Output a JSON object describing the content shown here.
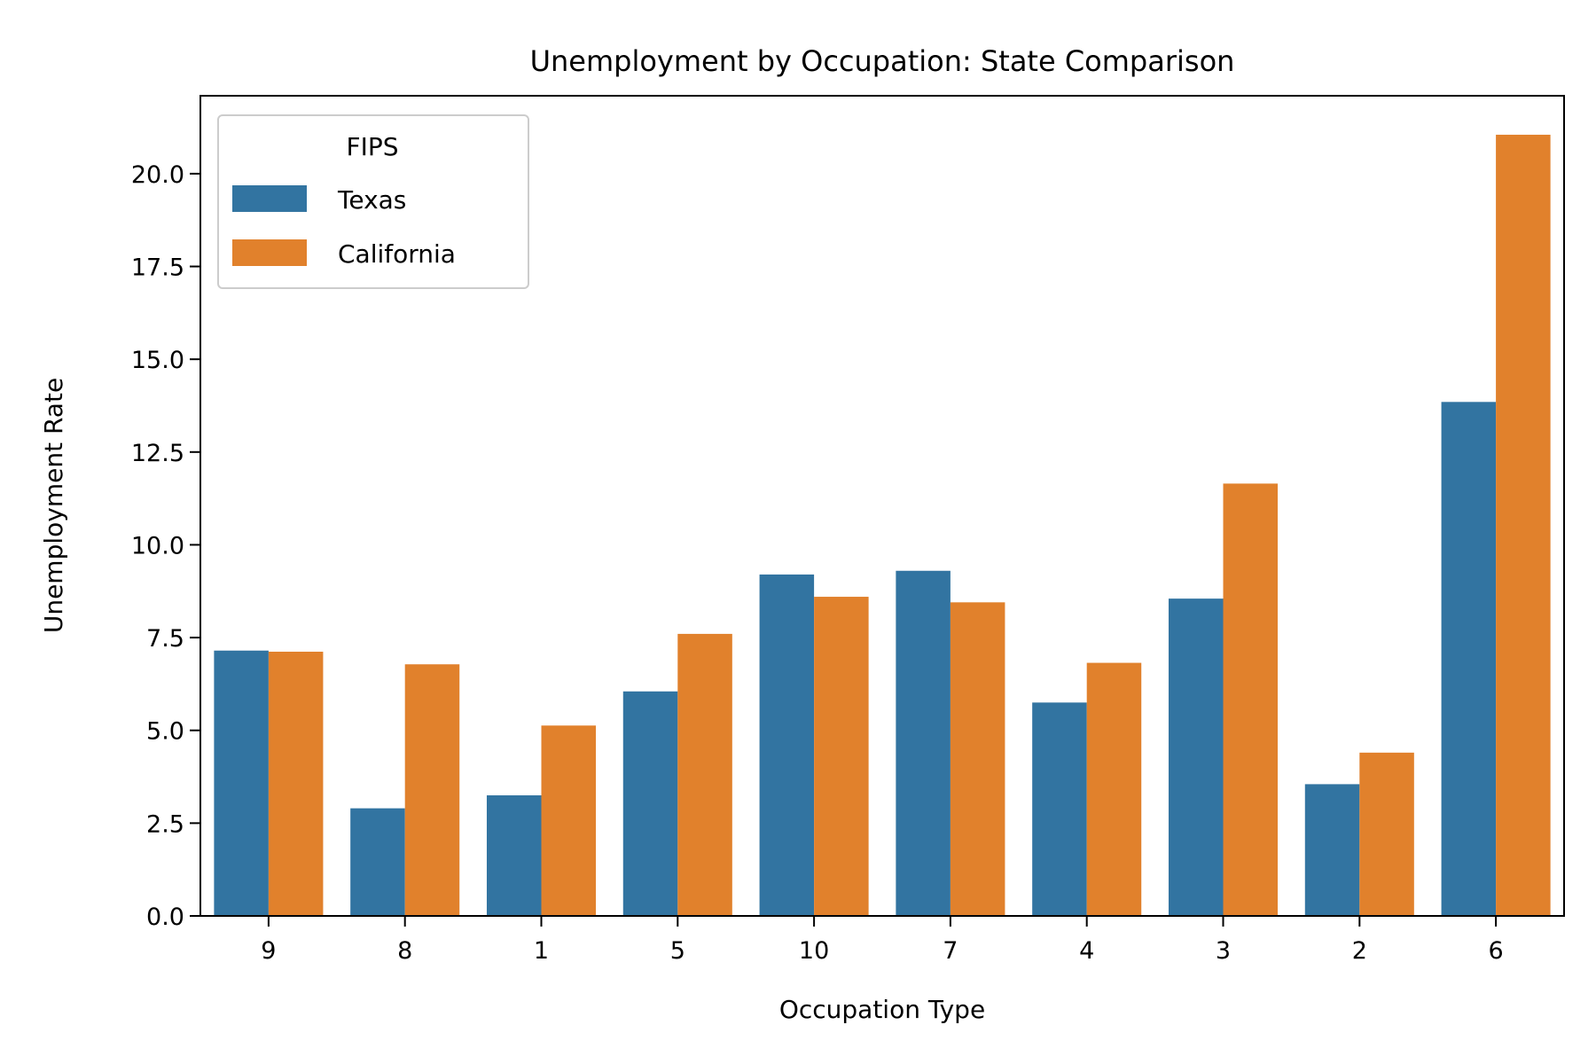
{
  "chart_data": {
    "type": "bar",
    "title": "Unemployment by Occupation: State Comparison",
    "xlabel": "Occupation Type",
    "ylabel": "Unemployment Rate",
    "categories": [
      "9",
      "8",
      "1",
      "5",
      "10",
      "7",
      "4",
      "3",
      "2",
      "6"
    ],
    "series": [
      {
        "name": "Texas",
        "color": "#3274a1",
        "values": [
          7.15,
          2.9,
          3.25,
          6.05,
          9.2,
          9.3,
          5.75,
          8.55,
          3.55,
          13.85
        ]
      },
      {
        "name": "California",
        "color": "#e1812c",
        "values": [
          7.12,
          6.78,
          5.13,
          7.6,
          8.6,
          8.45,
          6.82,
          11.65,
          4.4,
          21.05
        ]
      }
    ],
    "ylim": [
      0,
      22.1
    ],
    "yticks": [
      "0.0",
      "2.5",
      "5.0",
      "7.5",
      "10.0",
      "12.5",
      "15.0",
      "17.5",
      "20.0"
    ],
    "legend": {
      "title": "FIPS",
      "position": "top-left"
    },
    "grid": false
  }
}
